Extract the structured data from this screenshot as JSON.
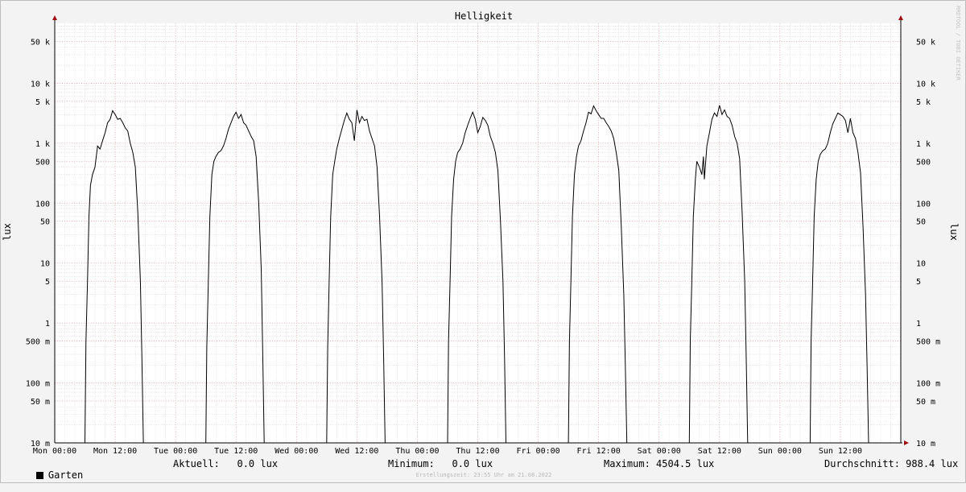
{
  "chart_data": {
    "type": "line",
    "title": "Helligkeit",
    "ylabel": "lux",
    "y_scale": "log",
    "ylim": [
      0.01,
      100000
    ],
    "y_ticks": [
      {
        "value": 0.01,
        "label": "10 m"
      },
      {
        "value": 0.05,
        "label": "50 m"
      },
      {
        "value": 0.1,
        "label": "100 m"
      },
      {
        "value": 0.5,
        "label": "500 m"
      },
      {
        "value": 1,
        "label": "1"
      },
      {
        "value": 5,
        "label": "5"
      },
      {
        "value": 10,
        "label": "10"
      },
      {
        "value": 50,
        "label": "50"
      },
      {
        "value": 100,
        "label": "100"
      },
      {
        "value": 500,
        "label": "500"
      },
      {
        "value": 1000,
        "label": "1 k"
      },
      {
        "value": 5000,
        "label": "5 k"
      },
      {
        "value": 10000,
        "label": "10 k"
      },
      {
        "value": 50000,
        "label": "50 k"
      }
    ],
    "x_ticks": [
      "Mon 00:00",
      "Mon 12:00",
      "Tue 00:00",
      "Tue 12:00",
      "Wed 00:00",
      "Wed 12:00",
      "Thu 00:00",
      "Thu 12:00",
      "Fri 00:00",
      "Fri 12:00",
      "Sat 00:00",
      "Sat 12:00",
      "Sun 00:00",
      "Sun 12:00"
    ],
    "grid": true,
    "x_unit": "hours since Mon 00:00",
    "series": [
      {
        "name": "Garten",
        "color": "#000000",
        "points": [
          [
            0,
            0.01
          ],
          [
            6.0,
            0.01
          ],
          [
            6.2,
            0.5
          ],
          [
            6.5,
            5
          ],
          [
            6.8,
            60
          ],
          [
            7.1,
            200
          ],
          [
            7.5,
            300
          ],
          [
            8.0,
            400
          ],
          [
            8.5,
            900
          ],
          [
            9.0,
            800
          ],
          [
            9.5,
            1100
          ],
          [
            10.0,
            1500
          ],
          [
            10.5,
            2200
          ],
          [
            11.0,
            2500
          ],
          [
            11.5,
            3500
          ],
          [
            12.0,
            3000
          ],
          [
            12.5,
            2500
          ],
          [
            13.0,
            2600
          ],
          [
            13.5,
            2200
          ],
          [
            14.0,
            1800
          ],
          [
            14.5,
            1600
          ],
          [
            15.0,
            1000
          ],
          [
            15.5,
            700
          ],
          [
            16.0,
            400
          ],
          [
            16.5,
            70
          ],
          [
            17.0,
            5
          ],
          [
            17.3,
            0.3
          ],
          [
            17.6,
            0.01
          ],
          [
            24,
            0.01
          ],
          [
            30.0,
            0.01
          ],
          [
            30.2,
            0.4
          ],
          [
            30.5,
            5
          ],
          [
            30.8,
            60
          ],
          [
            31.2,
            300
          ],
          [
            31.6,
            500
          ],
          [
            32.0,
            600
          ],
          [
            32.5,
            700
          ],
          [
            33.0,
            750
          ],
          [
            33.5,
            900
          ],
          [
            34.0,
            1200
          ],
          [
            34.5,
            1700
          ],
          [
            35.0,
            2200
          ],
          [
            35.5,
            2800
          ],
          [
            36.0,
            3300
          ],
          [
            36.5,
            2600
          ],
          [
            37.0,
            3000
          ],
          [
            37.5,
            2200
          ],
          [
            38.0,
            2000
          ],
          [
            38.5,
            1600
          ],
          [
            39.0,
            1300
          ],
          [
            39.5,
            1100
          ],
          [
            40.0,
            600
          ],
          [
            40.5,
            100
          ],
          [
            41.0,
            8
          ],
          [
            41.3,
            0.3
          ],
          [
            41.6,
            0.01
          ],
          [
            48,
            0.01
          ],
          [
            54.0,
            0.01
          ],
          [
            54.2,
            0.4
          ],
          [
            54.5,
            5
          ],
          [
            54.8,
            60
          ],
          [
            55.2,
            300
          ],
          [
            55.6,
            500
          ],
          [
            56.0,
            800
          ],
          [
            56.5,
            1200
          ],
          [
            57.0,
            1700
          ],
          [
            57.5,
            2400
          ],
          [
            58.0,
            3200
          ],
          [
            58.5,
            2500
          ],
          [
            59.0,
            2200
          ],
          [
            59.5,
            1100
          ],
          [
            60.0,
            3600
          ],
          [
            60.5,
            2200
          ],
          [
            61.0,
            2800
          ],
          [
            61.5,
            2400
          ],
          [
            62.0,
            2500
          ],
          [
            62.5,
            1600
          ],
          [
            63.0,
            1200
          ],
          [
            63.5,
            900
          ],
          [
            64.0,
            400
          ],
          [
            64.5,
            60
          ],
          [
            65.0,
            5
          ],
          [
            65.3,
            0.3
          ],
          [
            65.6,
            0.01
          ],
          [
            72,
            0.01
          ],
          [
            78.0,
            0.01
          ],
          [
            78.2,
            0.5
          ],
          [
            78.5,
            5
          ],
          [
            78.8,
            60
          ],
          [
            79.2,
            250
          ],
          [
            79.6,
            500
          ],
          [
            80.0,
            700
          ],
          [
            80.5,
            800
          ],
          [
            81.0,
            1000
          ],
          [
            81.5,
            1500
          ],
          [
            82.0,
            2000
          ],
          [
            82.5,
            2600
          ],
          [
            83.0,
            3300
          ],
          [
            83.5,
            2500
          ],
          [
            84.0,
            1500
          ],
          [
            84.5,
            1900
          ],
          [
            85.0,
            2700
          ],
          [
            85.5,
            2400
          ],
          [
            86.0,
            2000
          ],
          [
            86.5,
            1300
          ],
          [
            87.0,
            1000
          ],
          [
            87.5,
            700
          ],
          [
            88.0,
            350
          ],
          [
            88.5,
            50
          ],
          [
            89.0,
            5
          ],
          [
            89.3,
            0.3
          ],
          [
            89.6,
            0.01
          ],
          [
            96,
            0.01
          ],
          [
            102.0,
            0.01
          ],
          [
            102.2,
            0.5
          ],
          [
            102.5,
            5
          ],
          [
            102.8,
            60
          ],
          [
            103.2,
            300
          ],
          [
            103.6,
            600
          ],
          [
            104.0,
            900
          ],
          [
            104.5,
            1100
          ],
          [
            105.0,
            1600
          ],
          [
            105.5,
            2200
          ],
          [
            106.0,
            3300
          ],
          [
            106.5,
            3100
          ],
          [
            107.0,
            4200
          ],
          [
            107.5,
            3500
          ],
          [
            108.0,
            3000
          ],
          [
            108.5,
            2600
          ],
          [
            109.0,
            2600
          ],
          [
            109.5,
            2200
          ],
          [
            110.0,
            1900
          ],
          [
            110.5,
            1600
          ],
          [
            111.0,
            1200
          ],
          [
            111.5,
            700
          ],
          [
            112.0,
            350
          ],
          [
            112.5,
            40
          ],
          [
            113.0,
            3
          ],
          [
            113.3,
            0.2
          ],
          [
            113.6,
            0.01
          ],
          [
            120,
            0.01
          ],
          [
            126.0,
            0.01
          ],
          [
            126.2,
            0.5
          ],
          [
            126.5,
            5
          ],
          [
            126.8,
            60
          ],
          [
            127.2,
            250
          ],
          [
            127.5,
            500
          ],
          [
            128.0,
            400
          ],
          [
            128.5,
            300
          ],
          [
            128.8,
            600
          ],
          [
            129.0,
            250
          ],
          [
            129.5,
            900
          ],
          [
            130.0,
            1500
          ],
          [
            130.5,
            2500
          ],
          [
            131.0,
            3200
          ],
          [
            131.5,
            2800
          ],
          [
            132.0,
            4300
          ],
          [
            132.5,
            3000
          ],
          [
            133.0,
            3600
          ],
          [
            133.5,
            2800
          ],
          [
            134.0,
            2600
          ],
          [
            134.5,
            2000
          ],
          [
            135.0,
            1300
          ],
          [
            135.5,
            1000
          ],
          [
            136.0,
            550
          ],
          [
            136.5,
            70
          ],
          [
            137.0,
            5
          ],
          [
            137.3,
            0.3
          ],
          [
            137.6,
            0.01
          ],
          [
            144,
            0.01
          ],
          [
            150.0,
            0.01
          ],
          [
            150.2,
            0.5
          ],
          [
            150.5,
            5
          ],
          [
            150.8,
            60
          ],
          [
            151.2,
            250
          ],
          [
            151.6,
            500
          ],
          [
            152.0,
            650
          ],
          [
            152.5,
            750
          ],
          [
            153.0,
            800
          ],
          [
            153.5,
            1000
          ],
          [
            154.0,
            1500
          ],
          [
            154.5,
            2100
          ],
          [
            155.0,
            2600
          ],
          [
            155.5,
            3200
          ],
          [
            156.0,
            3000
          ],
          [
            156.5,
            2800
          ],
          [
            157.0,
            2400
          ],
          [
            157.5,
            1500
          ],
          [
            158.0,
            2600
          ],
          [
            158.5,
            1500
          ],
          [
            159.0,
            1200
          ],
          [
            159.5,
            700
          ],
          [
            160.0,
            320
          ],
          [
            160.5,
            40
          ],
          [
            161.0,
            3
          ],
          [
            161.3,
            0.2
          ],
          [
            161.6,
            0.01
          ],
          [
            168,
            0.01
          ]
        ]
      }
    ]
  },
  "watermark": "RRDTOOL / TOBI OETIKER",
  "legend": {
    "series_label": "Garten",
    "current": "Aktuell:   0.0 lux",
    "minimum": "Minimum:   0.0 lux",
    "maximum": "Maximum: 4504.5 lux",
    "average": "Durchschnitt: 988.4 lux"
  },
  "footer": "Erstellungszeit: 23:55 Uhr am 21.08.2022"
}
